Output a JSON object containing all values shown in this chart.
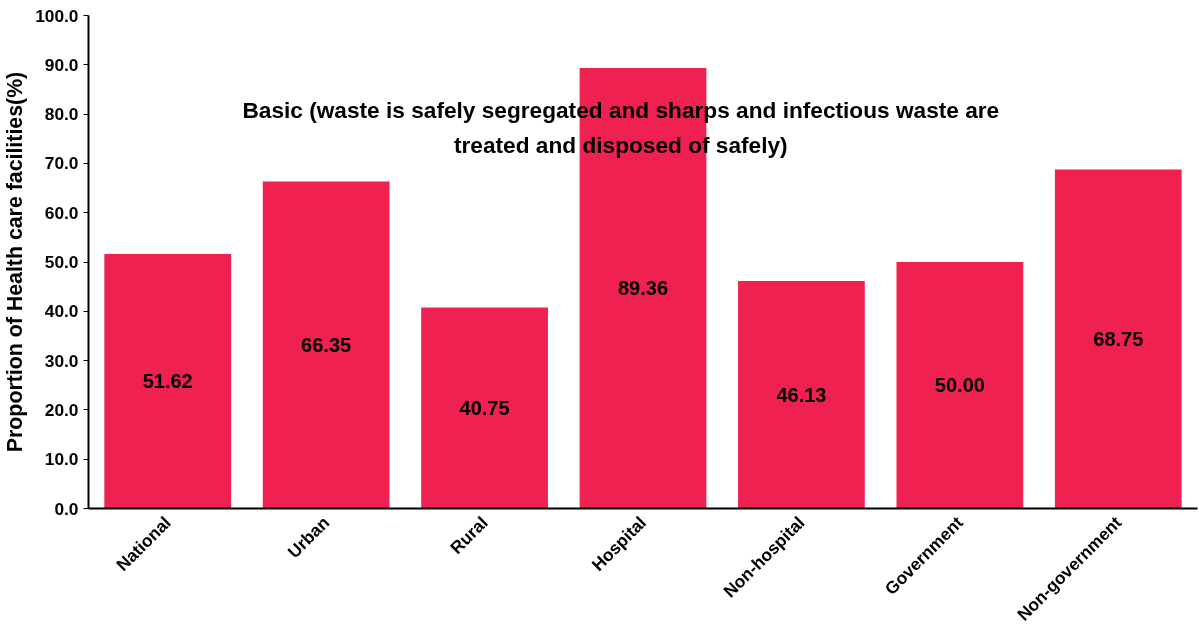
{
  "chart_data": {
    "type": "bar",
    "title": "Basic (waste is safely segregated and sharps and infectious waste are treated and disposed of safely)",
    "ylabel": "Proportion of Health care facilities(%)",
    "categories": [
      "National",
      "Urban",
      "Rural",
      "Hospital",
      "Non-hospital",
      "Government",
      "Non-government"
    ],
    "values": [
      51.62,
      66.35,
      40.75,
      89.36,
      46.13,
      50.0,
      68.75
    ],
    "color": "#ee2150",
    "ylim": [
      0,
      100
    ],
    "yticks": [
      {
        "value": 0,
        "label": "0.0"
      },
      {
        "value": 10,
        "label": "10.0"
      },
      {
        "value": 20,
        "label": "20.0"
      },
      {
        "value": 30,
        "label": "30.0"
      },
      {
        "value": 40,
        "label": "40.0"
      },
      {
        "value": 50,
        "label": "50.0"
      },
      {
        "value": 60,
        "label": "60.0"
      },
      {
        "value": 70,
        "label": "70.0"
      },
      {
        "value": 80,
        "label": "80.0"
      },
      {
        "value": 90,
        "label": "90.0"
      },
      {
        "value": 100,
        "label": "100.0"
      }
    ],
    "value_labels": [
      "51.62",
      "66.35",
      "40.75",
      "89.36",
      "46.13",
      "50.00",
      "68.75"
    ],
    "grid": false
  }
}
